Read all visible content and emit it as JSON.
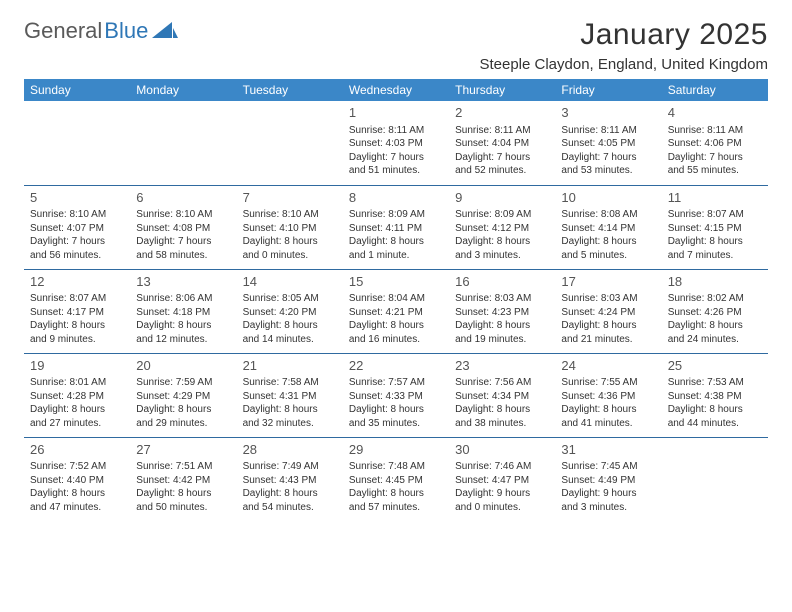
{
  "logo": {
    "text1": "General",
    "text2": "Blue",
    "icon_fill": "#2f77b6"
  },
  "title": {
    "month": "January 2025",
    "location": "Steeple Claydon, England, United Kingdom"
  },
  "colors": {
    "header_bg": "#3b87c8",
    "header_text": "#ffffff",
    "border": "#2f6aa0",
    "body_text": "#333333",
    "daynum": "#555555",
    "page_bg": "#ffffff"
  },
  "day_headers": [
    "Sunday",
    "Monday",
    "Tuesday",
    "Wednesday",
    "Thursday",
    "Friday",
    "Saturday"
  ],
  "weeks": [
    [
      {
        "num": "",
        "sunrise": "",
        "sunset": "",
        "daylight": ""
      },
      {
        "num": "",
        "sunrise": "",
        "sunset": "",
        "daylight": ""
      },
      {
        "num": "",
        "sunrise": "",
        "sunset": "",
        "daylight": ""
      },
      {
        "num": "1",
        "sunrise": "Sunrise: 8:11 AM",
        "sunset": "Sunset: 4:03 PM",
        "daylight": "Daylight: 7 hours and 51 minutes."
      },
      {
        "num": "2",
        "sunrise": "Sunrise: 8:11 AM",
        "sunset": "Sunset: 4:04 PM",
        "daylight": "Daylight: 7 hours and 52 minutes."
      },
      {
        "num": "3",
        "sunrise": "Sunrise: 8:11 AM",
        "sunset": "Sunset: 4:05 PM",
        "daylight": "Daylight: 7 hours and 53 minutes."
      },
      {
        "num": "4",
        "sunrise": "Sunrise: 8:11 AM",
        "sunset": "Sunset: 4:06 PM",
        "daylight": "Daylight: 7 hours and 55 minutes."
      }
    ],
    [
      {
        "num": "5",
        "sunrise": "Sunrise: 8:10 AM",
        "sunset": "Sunset: 4:07 PM",
        "daylight": "Daylight: 7 hours and 56 minutes."
      },
      {
        "num": "6",
        "sunrise": "Sunrise: 8:10 AM",
        "sunset": "Sunset: 4:08 PM",
        "daylight": "Daylight: 7 hours and 58 minutes."
      },
      {
        "num": "7",
        "sunrise": "Sunrise: 8:10 AM",
        "sunset": "Sunset: 4:10 PM",
        "daylight": "Daylight: 8 hours and 0 minutes."
      },
      {
        "num": "8",
        "sunrise": "Sunrise: 8:09 AM",
        "sunset": "Sunset: 4:11 PM",
        "daylight": "Daylight: 8 hours and 1 minute."
      },
      {
        "num": "9",
        "sunrise": "Sunrise: 8:09 AM",
        "sunset": "Sunset: 4:12 PM",
        "daylight": "Daylight: 8 hours and 3 minutes."
      },
      {
        "num": "10",
        "sunrise": "Sunrise: 8:08 AM",
        "sunset": "Sunset: 4:14 PM",
        "daylight": "Daylight: 8 hours and 5 minutes."
      },
      {
        "num": "11",
        "sunrise": "Sunrise: 8:07 AM",
        "sunset": "Sunset: 4:15 PM",
        "daylight": "Daylight: 8 hours and 7 minutes."
      }
    ],
    [
      {
        "num": "12",
        "sunrise": "Sunrise: 8:07 AM",
        "sunset": "Sunset: 4:17 PM",
        "daylight": "Daylight: 8 hours and 9 minutes."
      },
      {
        "num": "13",
        "sunrise": "Sunrise: 8:06 AM",
        "sunset": "Sunset: 4:18 PM",
        "daylight": "Daylight: 8 hours and 12 minutes."
      },
      {
        "num": "14",
        "sunrise": "Sunrise: 8:05 AM",
        "sunset": "Sunset: 4:20 PM",
        "daylight": "Daylight: 8 hours and 14 minutes."
      },
      {
        "num": "15",
        "sunrise": "Sunrise: 8:04 AM",
        "sunset": "Sunset: 4:21 PM",
        "daylight": "Daylight: 8 hours and 16 minutes."
      },
      {
        "num": "16",
        "sunrise": "Sunrise: 8:03 AM",
        "sunset": "Sunset: 4:23 PM",
        "daylight": "Daylight: 8 hours and 19 minutes."
      },
      {
        "num": "17",
        "sunrise": "Sunrise: 8:03 AM",
        "sunset": "Sunset: 4:24 PM",
        "daylight": "Daylight: 8 hours and 21 minutes."
      },
      {
        "num": "18",
        "sunrise": "Sunrise: 8:02 AM",
        "sunset": "Sunset: 4:26 PM",
        "daylight": "Daylight: 8 hours and 24 minutes."
      }
    ],
    [
      {
        "num": "19",
        "sunrise": "Sunrise: 8:01 AM",
        "sunset": "Sunset: 4:28 PM",
        "daylight": "Daylight: 8 hours and 27 minutes."
      },
      {
        "num": "20",
        "sunrise": "Sunrise: 7:59 AM",
        "sunset": "Sunset: 4:29 PM",
        "daylight": "Daylight: 8 hours and 29 minutes."
      },
      {
        "num": "21",
        "sunrise": "Sunrise: 7:58 AM",
        "sunset": "Sunset: 4:31 PM",
        "daylight": "Daylight: 8 hours and 32 minutes."
      },
      {
        "num": "22",
        "sunrise": "Sunrise: 7:57 AM",
        "sunset": "Sunset: 4:33 PM",
        "daylight": "Daylight: 8 hours and 35 minutes."
      },
      {
        "num": "23",
        "sunrise": "Sunrise: 7:56 AM",
        "sunset": "Sunset: 4:34 PM",
        "daylight": "Daylight: 8 hours and 38 minutes."
      },
      {
        "num": "24",
        "sunrise": "Sunrise: 7:55 AM",
        "sunset": "Sunset: 4:36 PM",
        "daylight": "Daylight: 8 hours and 41 minutes."
      },
      {
        "num": "25",
        "sunrise": "Sunrise: 7:53 AM",
        "sunset": "Sunset: 4:38 PM",
        "daylight": "Daylight: 8 hours and 44 minutes."
      }
    ],
    [
      {
        "num": "26",
        "sunrise": "Sunrise: 7:52 AM",
        "sunset": "Sunset: 4:40 PM",
        "daylight": "Daylight: 8 hours and 47 minutes."
      },
      {
        "num": "27",
        "sunrise": "Sunrise: 7:51 AM",
        "sunset": "Sunset: 4:42 PM",
        "daylight": "Daylight: 8 hours and 50 minutes."
      },
      {
        "num": "28",
        "sunrise": "Sunrise: 7:49 AM",
        "sunset": "Sunset: 4:43 PM",
        "daylight": "Daylight: 8 hours and 54 minutes."
      },
      {
        "num": "29",
        "sunrise": "Sunrise: 7:48 AM",
        "sunset": "Sunset: 4:45 PM",
        "daylight": "Daylight: 8 hours and 57 minutes."
      },
      {
        "num": "30",
        "sunrise": "Sunrise: 7:46 AM",
        "sunset": "Sunset: 4:47 PM",
        "daylight": "Daylight: 9 hours and 0 minutes."
      },
      {
        "num": "31",
        "sunrise": "Sunrise: 7:45 AM",
        "sunset": "Sunset: 4:49 PM",
        "daylight": "Daylight: 9 hours and 3 minutes."
      },
      {
        "num": "",
        "sunrise": "",
        "sunset": "",
        "daylight": ""
      }
    ]
  ]
}
